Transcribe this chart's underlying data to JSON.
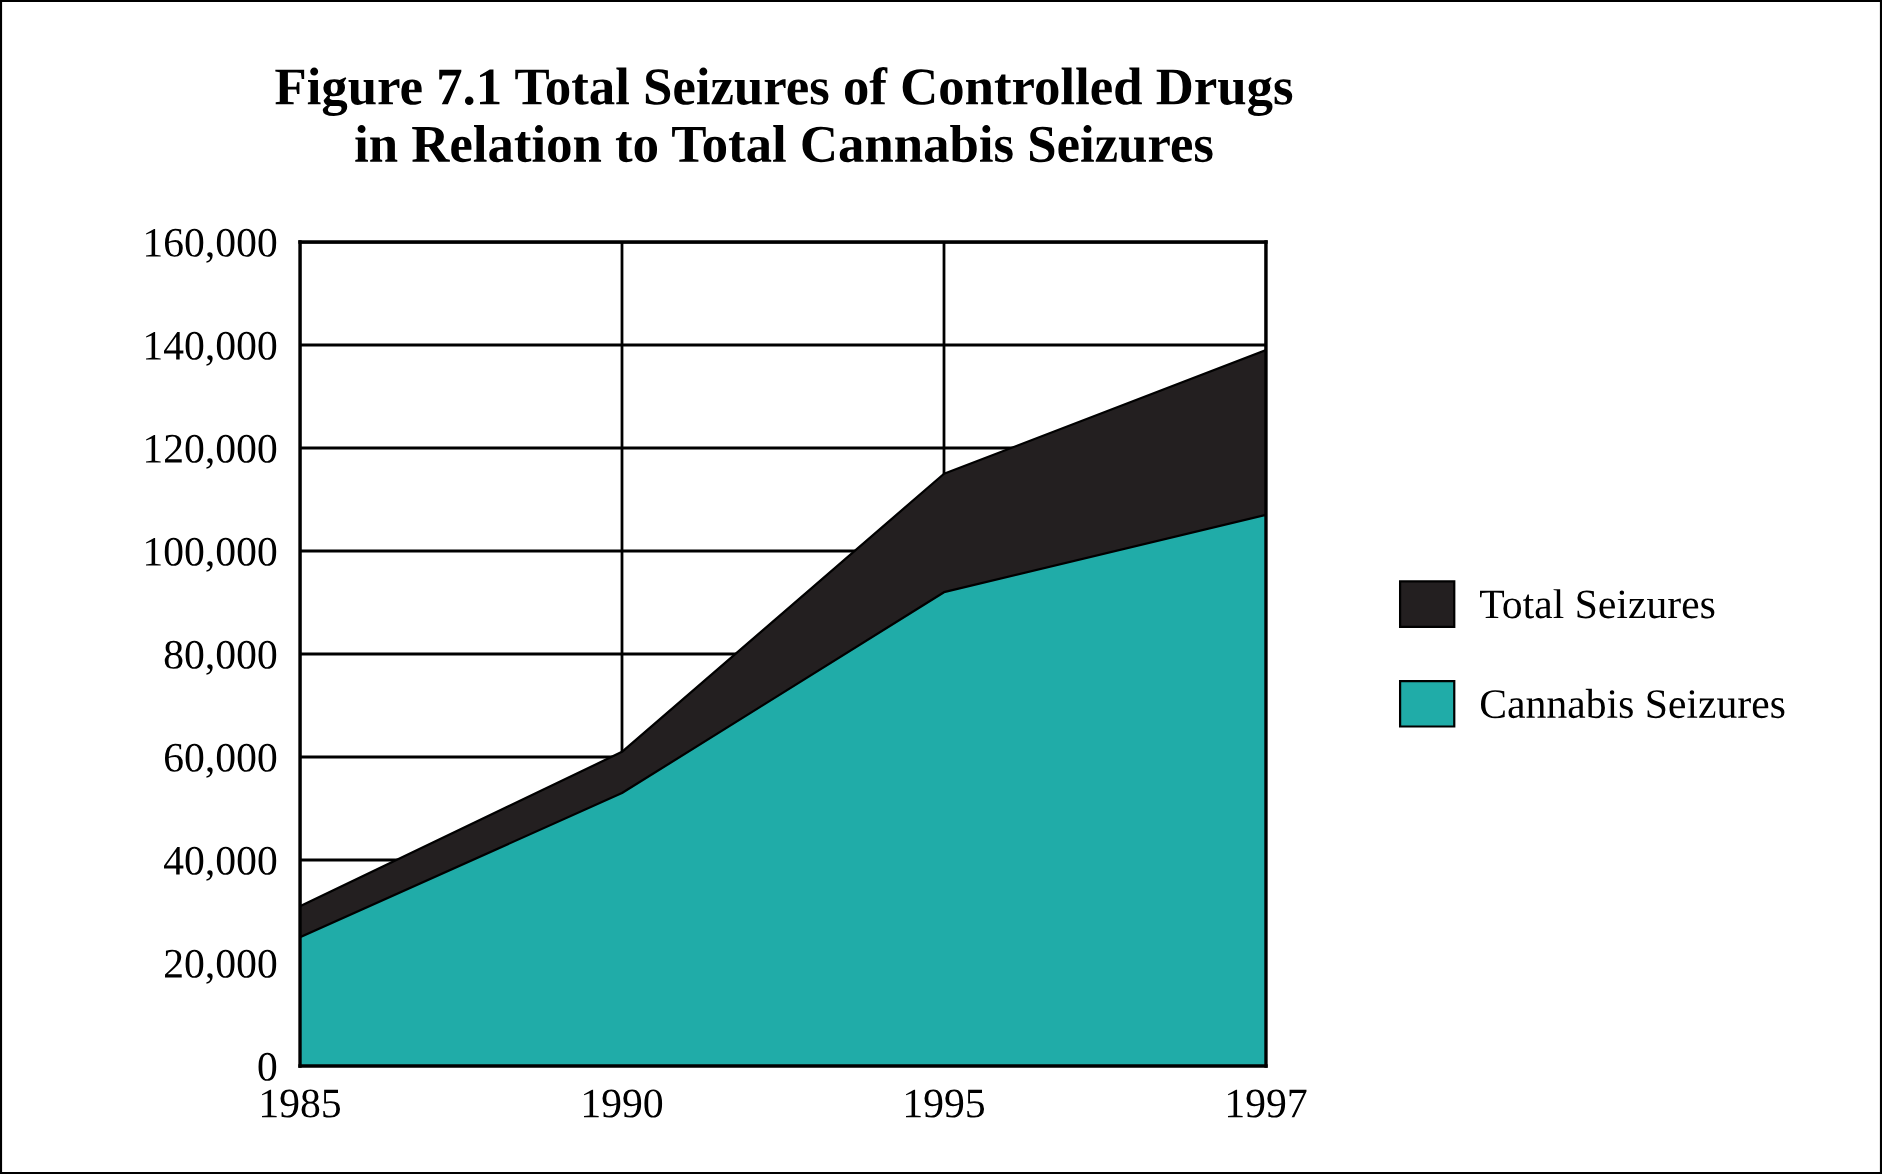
{
  "chart_data": {
    "type": "area",
    "title": "Figure 7.1 Total Seizures of Controlled Drugs\nin Relation to Total Cannabis Seizures",
    "categories": [
      "1985",
      "1990",
      "1995",
      "1997"
    ],
    "series": [
      {
        "name": "Total Seizures",
        "color": "#231f20",
        "values": [
          31000,
          61000,
          115000,
          139000
        ]
      },
      {
        "name": "Cannabis Seizures",
        "color": "#20aca8",
        "values": [
          25000,
          53000,
          92000,
          107000
        ]
      }
    ],
    "ylim": [
      0,
      160000
    ],
    "yticks": [
      {
        "value": 0,
        "label": "0"
      },
      {
        "value": 20000,
        "label": "20,000"
      },
      {
        "value": 40000,
        "label": "40,000"
      },
      {
        "value": 60000,
        "label": "60,000"
      },
      {
        "value": 80000,
        "label": "80,000"
      },
      {
        "value": 100000,
        "label": "100,000"
      },
      {
        "value": 120000,
        "label": "120,000"
      },
      {
        "value": 140000,
        "label": "140,000"
      },
      {
        "value": 160000,
        "label": "160,000"
      }
    ],
    "grid": true,
    "legend": "right"
  }
}
